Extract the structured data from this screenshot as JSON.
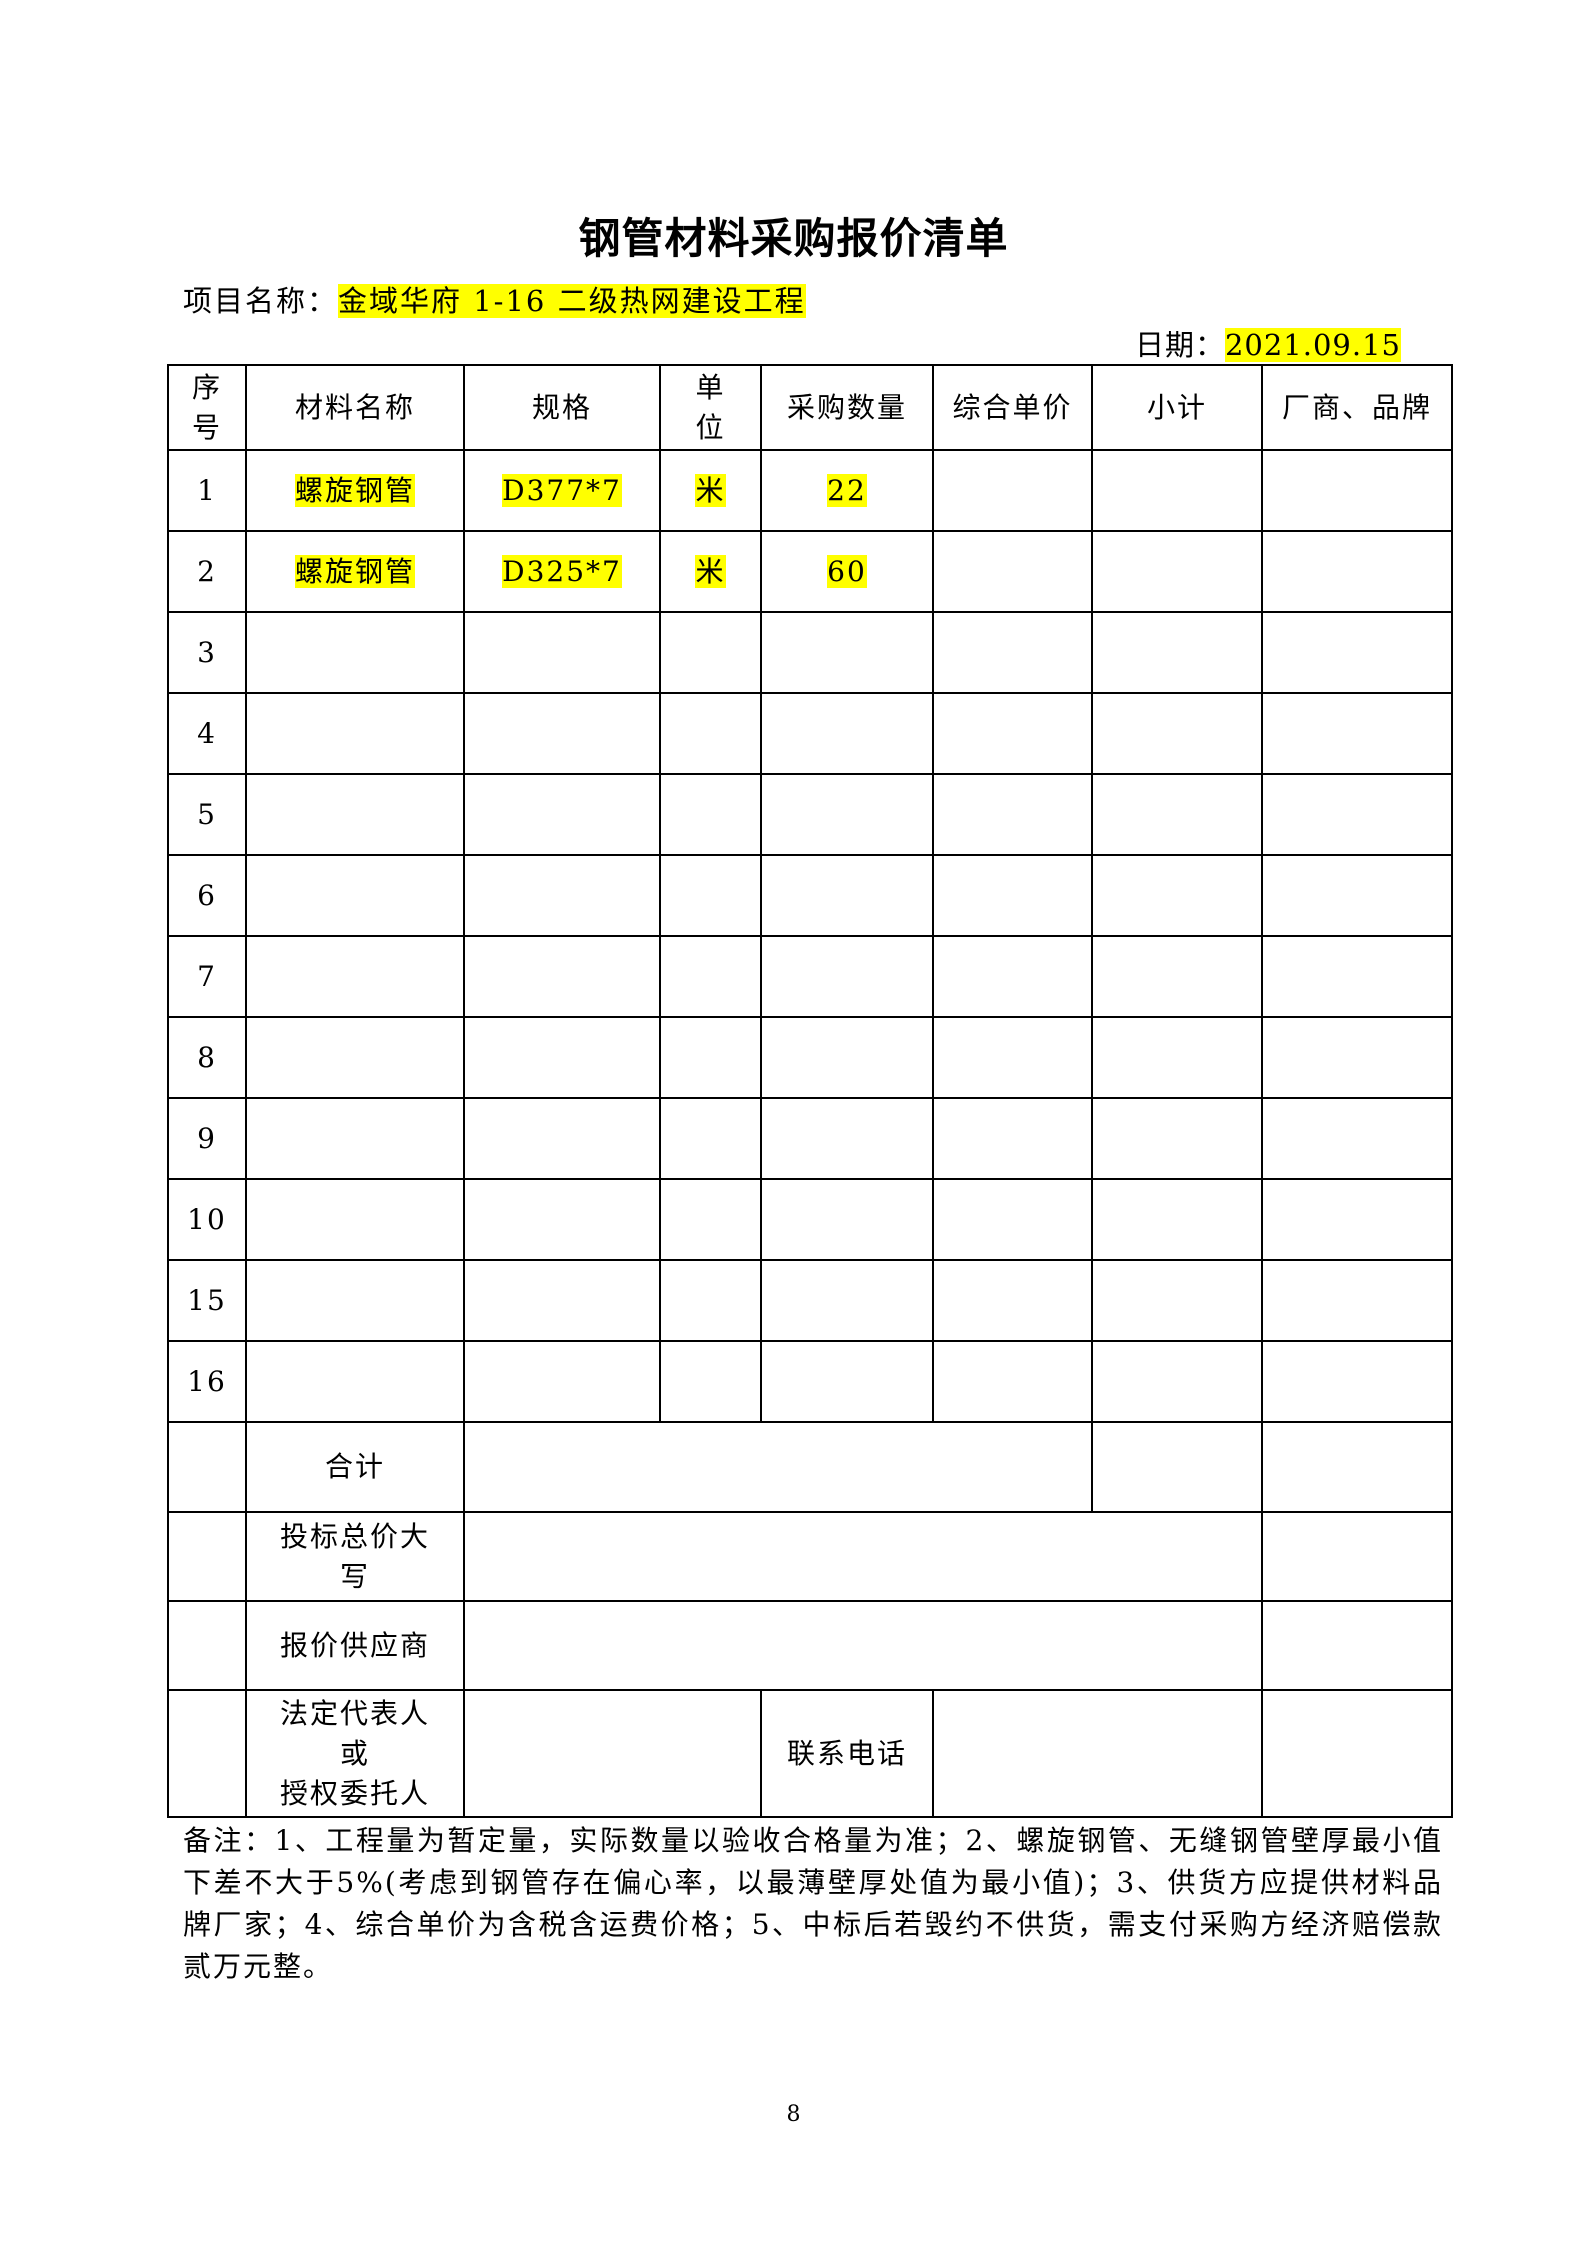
{
  "title": "钢管材料采购报价清单",
  "project": {
    "label": "项目名称：",
    "value": "金域华府 1-16 二级热网建设工程"
  },
  "date": {
    "label": "日期：",
    "value": "2021.09.15"
  },
  "highlight_color": "#ffff00",
  "headers": [
    "序号",
    "材料名称",
    "规格",
    "单位",
    "采购数量",
    "综合单价",
    "小计",
    "厂商、品牌"
  ],
  "header_lines": {
    "seq": [
      "序",
      "号"
    ],
    "unit": [
      "单",
      "位"
    ]
  },
  "rows": [
    {
      "no": "1",
      "name": "螺旋钢管",
      "spec": "D377*7",
      "unit": "米",
      "qty": "22"
    },
    {
      "no": "2",
      "name": "螺旋钢管",
      "spec": "D325*7",
      "unit": "米",
      "qty": "60"
    },
    {
      "no": "3"
    },
    {
      "no": "4"
    },
    {
      "no": "5"
    },
    {
      "no": "6"
    },
    {
      "no": "7"
    },
    {
      "no": "8"
    },
    {
      "no": "9"
    },
    {
      "no": "10"
    },
    {
      "no": "15"
    },
    {
      "no": "16"
    }
  ],
  "footer": {
    "total": "合计",
    "bid_total_caps": [
      "投标总价大",
      "写"
    ],
    "supplier": "报价供应商",
    "rep": [
      "法定代表人",
      "或",
      "授权委托人"
    ],
    "phone": "联系电话"
  },
  "notes": "备注：1、工程量为暂定量，实际数量以验收合格量为准；2、螺旋钢管、无缝钢管壁厚最小值下差不大于5%(考虑到钢管存在偏心率，以最薄壁厚处值为最小值)；3、供货方应提供材料品牌厂家；4、综合单价为含税含运费价格；5、中标后若毁约不供货，需支付采购方经济赔偿款贰万元整。",
  "page_number": "8"
}
